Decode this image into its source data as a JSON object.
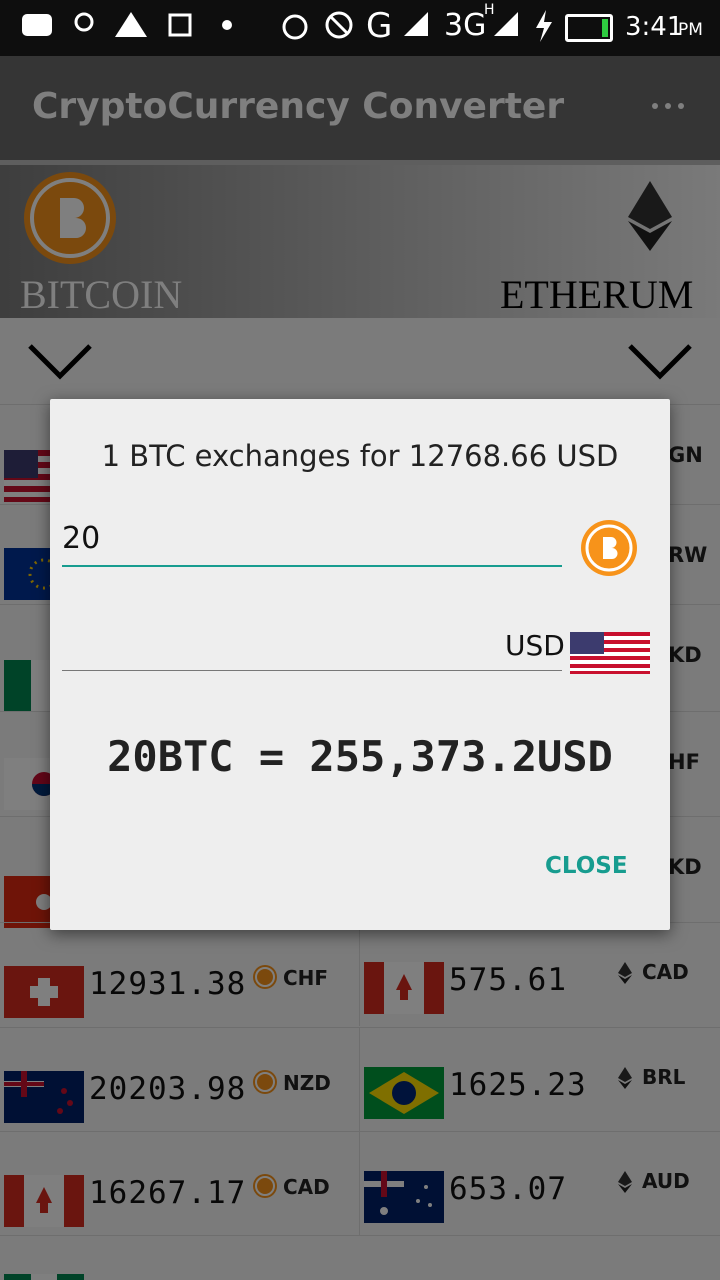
{
  "status_bar": {
    "time": "3:41",
    "period": "PM",
    "network_1": "G",
    "network_2": "3G",
    "network_2_badge": "H"
  },
  "toolbar": {
    "title": "CryptoCurrency Converter"
  },
  "header": {
    "left_coin": "BITCOIN",
    "right_coin": "ETHERUM"
  },
  "list": {
    "covered_fragments": [
      "GN",
      "RW",
      "KD",
      "HF",
      "KD"
    ],
    "rows": [
      {
        "left_value": "12931.38",
        "left_code": "CHF",
        "right_value": "575.61",
        "right_code": "CAD"
      },
      {
        "left_value": "20203.98",
        "left_code": "NZD",
        "right_value": "1625.23",
        "right_code": "BRL"
      },
      {
        "left_value": "16267.17",
        "left_code": "CAD",
        "right_value": "653.07",
        "right_code": "AUD"
      }
    ]
  },
  "dialog": {
    "title": "1 BTC exchanges for 12768.66 USD",
    "amount": "20",
    "currency": "USD",
    "result": "20BTC = 255,373.2USD",
    "close_button": "CLOSE"
  }
}
